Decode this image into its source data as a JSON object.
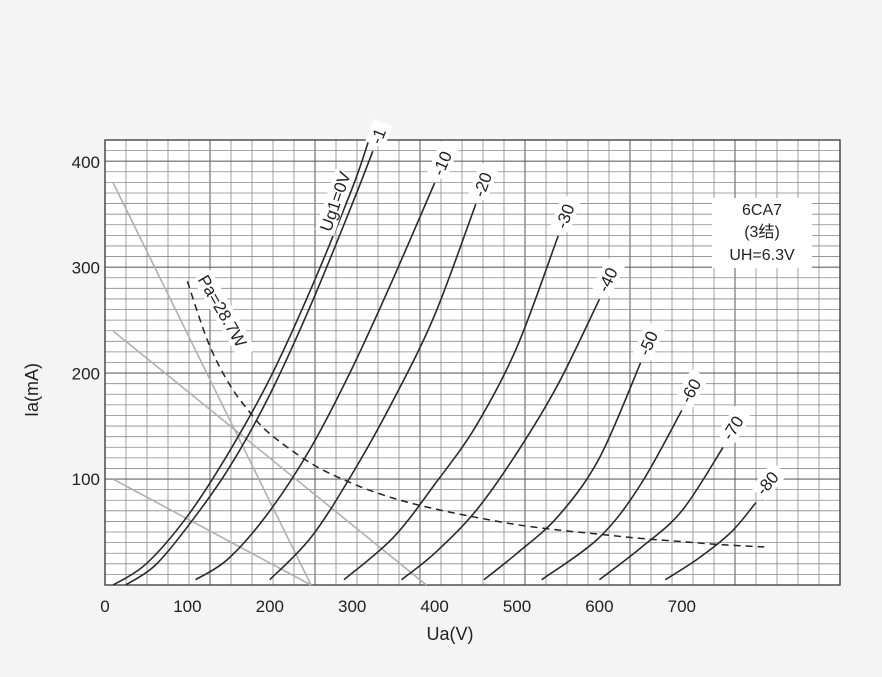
{
  "chart_data": {
    "type": "line",
    "xlabel": "Ua(V)",
    "ylabel": "Ia(mA)",
    "xlim": [
      0,
      900
    ],
    "ylim": [
      0,
      420
    ],
    "grid": true,
    "x_ticks": [
      "0",
      "100",
      "200",
      "300",
      "400",
      "500",
      "600",
      "700"
    ],
    "y_ticks": [
      "100",
      "200",
      "300",
      "400"
    ],
    "info_box": {
      "line1": "6CA7",
      "line2": "(3结)",
      "line3": "UH=6.3V"
    },
    "series": [
      {
        "name": "Ug1=0V",
        "label": "Ug1=0V",
        "x": [
          10,
          50,
          100,
          150,
          200,
          250,
          300,
          320
        ],
        "y": [
          0,
          20,
          65,
          125,
          195,
          280,
          375,
          420
        ]
      },
      {
        "name": "-1",
        "label": "-1",
        "x": [
          25,
          60,
          100,
          150,
          200,
          250,
          300,
          325
        ],
        "y": [
          0,
          18,
          55,
          110,
          180,
          265,
          360,
          410
        ]
      },
      {
        "name": "-10",
        "label": "-10",
        "x": [
          110,
          150,
          200,
          250,
          300,
          350,
          400
        ],
        "y": [
          5,
          25,
          70,
          130,
          205,
          290,
          380
        ]
      },
      {
        "name": "-20",
        "label": "-20",
        "x": [
          200,
          250,
          300,
          350,
          400,
          450
        ],
        "y": [
          5,
          45,
          105,
          175,
          255,
          360
        ]
      },
      {
        "name": "-30",
        "label": "-30",
        "x": [
          290,
          350,
          400,
          450,
          500,
          550
        ],
        "y": [
          5,
          45,
          95,
          150,
          225,
          330
        ]
      },
      {
        "name": "-40",
        "label": "-40",
        "x": [
          360,
          400,
          450,
          500,
          550,
          600
        ],
        "y": [
          5,
          30,
          70,
          125,
          190,
          270
        ]
      },
      {
        "name": "-50",
        "label": "-50",
        "x": [
          460,
          500,
          550,
          600,
          650
        ],
        "y": [
          5,
          30,
          65,
          120,
          210
        ]
      },
      {
        "name": "-60",
        "label": "-60",
        "x": [
          530,
          600,
          650,
          700
        ],
        "y": [
          5,
          45,
          95,
          165
        ]
      },
      {
        "name": "-70",
        "label": "-70",
        "x": [
          600,
          650,
          700,
          750
        ],
        "y": [
          5,
          35,
          70,
          130
        ]
      },
      {
        "name": "-80",
        "label": "-80",
        "x": [
          680,
          720,
          760,
          790
        ],
        "y": [
          5,
          25,
          50,
          78
        ]
      }
    ],
    "power_limit": {
      "label": "Pa=28.7W",
      "x": [
        100,
        125,
        150,
        175,
        200,
        250,
        300,
        350,
        400,
        450,
        500,
        550,
        600,
        650,
        700,
        750,
        800
      ],
      "y": [
        287,
        230,
        191,
        164,
        143,
        115,
        96,
        82,
        72,
        64,
        57,
        52,
        48,
        44,
        41,
        38,
        36
      ]
    },
    "load_lines": [
      {
        "x": [
          10,
          250
        ],
        "y": [
          380,
          0
        ]
      },
      {
        "x": [
          10,
          390
        ],
        "y": [
          240,
          0
        ]
      },
      {
        "x": [
          10,
          250
        ],
        "y": [
          100,
          0
        ]
      }
    ]
  }
}
